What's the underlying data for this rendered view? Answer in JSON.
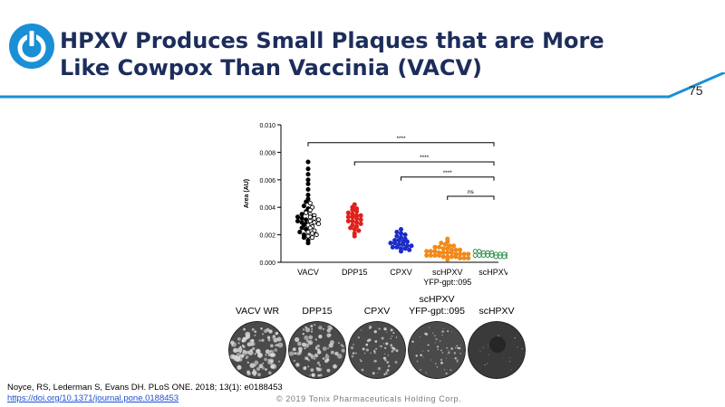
{
  "slide": {
    "title_line1": "HPXV Produces Small Plaques that are More",
    "title_line2": "Like Cowpox Than Vaccinia (VACV)",
    "page_number": "75",
    "accent_color": "#1a8fd6",
    "title_color": "#1d2d5b",
    "logo_icon": "power-button-icon"
  },
  "chart_data": {
    "type": "scatter",
    "ylabel": "Area (AU)",
    "xlabel": "",
    "ylim": [
      0,
      0.01
    ],
    "yticks": [
      "0.000",
      "0.002",
      "0.004",
      "0.006",
      "0.008",
      "0.010"
    ],
    "categories": [
      "VACV",
      "DPP15",
      "CPXV",
      "scHPXV\nYFP-gpt::095",
      "scHPXV"
    ],
    "series": [
      {
        "category": "VACV",
        "color": "#000000",
        "filled": [
          0.0073,
          0.0068,
          0.0064,
          0.006,
          0.0057,
          0.0053,
          0.0049,
          0.0046,
          0.0044,
          0.0041,
          0.0039,
          0.0037,
          0.0035,
          0.0033,
          0.0032,
          0.0031,
          0.003,
          0.0029,
          0.0028,
          0.0027,
          0.0025,
          0.0024,
          0.0022,
          0.002,
          0.0018,
          0.0016,
          0.0014
        ],
        "open": [
          0.0043,
          0.004,
          0.0038,
          0.0036,
          0.0035,
          0.0034,
          0.0033,
          0.0032,
          0.0031,
          0.003,
          0.0029,
          0.0028,
          0.0027,
          0.0026,
          0.0025,
          0.0023,
          0.0022,
          0.0021,
          0.002,
          0.0019,
          0.0018
        ]
      },
      {
        "category": "DPP15",
        "color": "#e0201b",
        "filled": [
          0.0042,
          0.004,
          0.0039,
          0.0038,
          0.0037,
          0.0036,
          0.0035,
          0.0034,
          0.0034,
          0.0033,
          0.0033,
          0.0032,
          0.0031,
          0.003,
          0.003,
          0.0029,
          0.0028,
          0.0027,
          0.0026,
          0.0025,
          0.0024,
          0.0023,
          0.0021,
          0.0019
        ]
      },
      {
        "category": "CPXV",
        "color": "#1c2cc8",
        "filled": [
          0.0024,
          0.0022,
          0.0021,
          0.002,
          0.0019,
          0.0018,
          0.0017,
          0.0016,
          0.0016,
          0.0015,
          0.0015,
          0.0014,
          0.0014,
          0.0013,
          0.0013,
          0.0012,
          0.0012,
          0.0011,
          0.0011,
          0.001,
          0.001,
          0.0009,
          0.0008
        ]
      },
      {
        "category": "scHPXV\nYFP-gpt::095",
        "color": "#f28a1a",
        "filled": [
          0.0017,
          0.0015,
          0.0014,
          0.0013,
          0.0012,
          0.0012,
          0.0011,
          0.0011,
          0.001,
          0.001,
          0.0009,
          0.0009,
          0.0009,
          0.0008,
          0.0008,
          0.0008,
          0.0007,
          0.0007,
          0.0007,
          0.0007,
          0.0006,
          0.0006,
          0.0006,
          0.0006,
          0.0005,
          0.0005,
          0.0005,
          0.0005,
          0.0004,
          0.0004,
          0.0004,
          0.0004,
          0.0003,
          0.0003,
          0.0003,
          0.0002
        ]
      },
      {
        "category": "scHPXV",
        "color": "#1f8a3c",
        "open": [
          0.0008,
          0.0008,
          0.0007,
          0.0007,
          0.0007,
          0.0006,
          0.0006,
          0.0006,
          0.0006,
          0.0006,
          0.0005,
          0.0005,
          0.0005,
          0.0005,
          0.0005,
          0.0004,
          0.0004,
          0.0004,
          0.0004,
          0.0003
        ]
      }
    ],
    "annotations": [
      {
        "from": "VACV",
        "to": "scHPXV",
        "label": "****"
      },
      {
        "from": "DPP15",
        "to": "scHPXV",
        "label": "****"
      },
      {
        "from": "CPXV",
        "to": "scHPXV",
        "label": "****"
      },
      {
        "from": "scHPXV\nYFP-gpt::095",
        "to": "scHPXV",
        "label": "ns"
      }
    ]
  },
  "plaques": [
    {
      "label_line1": "",
      "label_line2": "VACV WR",
      "density": 0.9,
      "size": 2.2
    },
    {
      "label_line1": "",
      "label_line2": "DPP15",
      "density": 0.7,
      "size": 2.0
    },
    {
      "label_line1": "",
      "label_line2": "CPXV",
      "density": 0.55,
      "size": 1.2
    },
    {
      "label_line1": "scHPXV",
      "label_line2": "YFP-gpt::095",
      "density": 0.45,
      "size": 1.0
    },
    {
      "label_line1": "",
      "label_line2": "scHPXV",
      "density": 0.12,
      "size": 0.6
    }
  ],
  "citation": {
    "text": "Noyce, RS, Lederman S, Evans DH. PLoS ONE. 2018; 13(1): e0188453",
    "link": "https://doi.org/10.1371/journal.pone.0188453"
  },
  "copyright": "© 2019 Tonix Pharmaceuticals Holding Corp."
}
